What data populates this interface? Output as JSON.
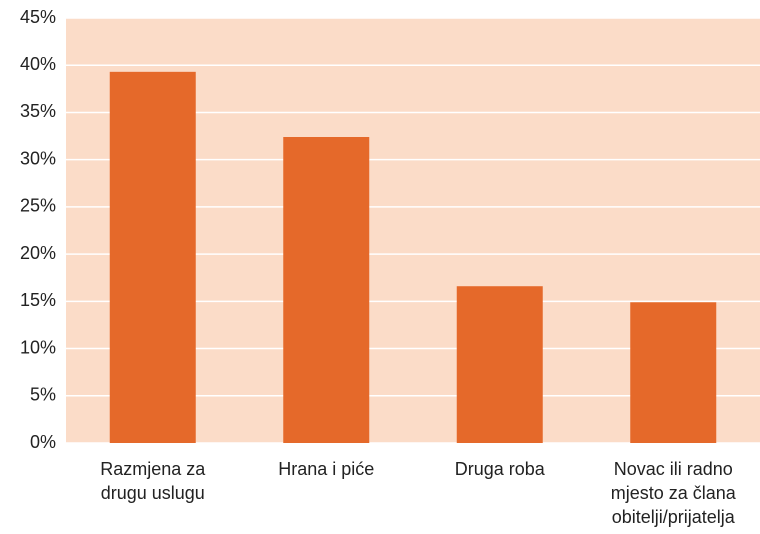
{
  "chart_data": {
    "type": "bar",
    "categories": [
      "Razmjena za\ndrugu uslugu",
      "Hrana i piće",
      "Druga roba",
      "Novac ili radno\nmjesto za člana\nobitelji/prijatelja"
    ],
    "values": [
      39.3,
      32.4,
      16.6,
      14.9
    ],
    "color": "#e5692a",
    "background": "#fbdcc8",
    "ylim": [
      0,
      45
    ],
    "yticks": [
      {
        "value": 0,
        "label": "0%"
      },
      {
        "value": 5,
        "label": "5%"
      },
      {
        "value": 10,
        "label": "10%"
      },
      {
        "value": 15,
        "label": "15%"
      },
      {
        "value": 20,
        "label": "20%"
      },
      {
        "value": 25,
        "label": "25%"
      },
      {
        "value": 30,
        "label": "30%"
      },
      {
        "value": 35,
        "label": "35%"
      },
      {
        "value": 40,
        "label": "40%"
      },
      {
        "value": 45,
        "label": "45%"
      }
    ],
    "grid": true
  }
}
